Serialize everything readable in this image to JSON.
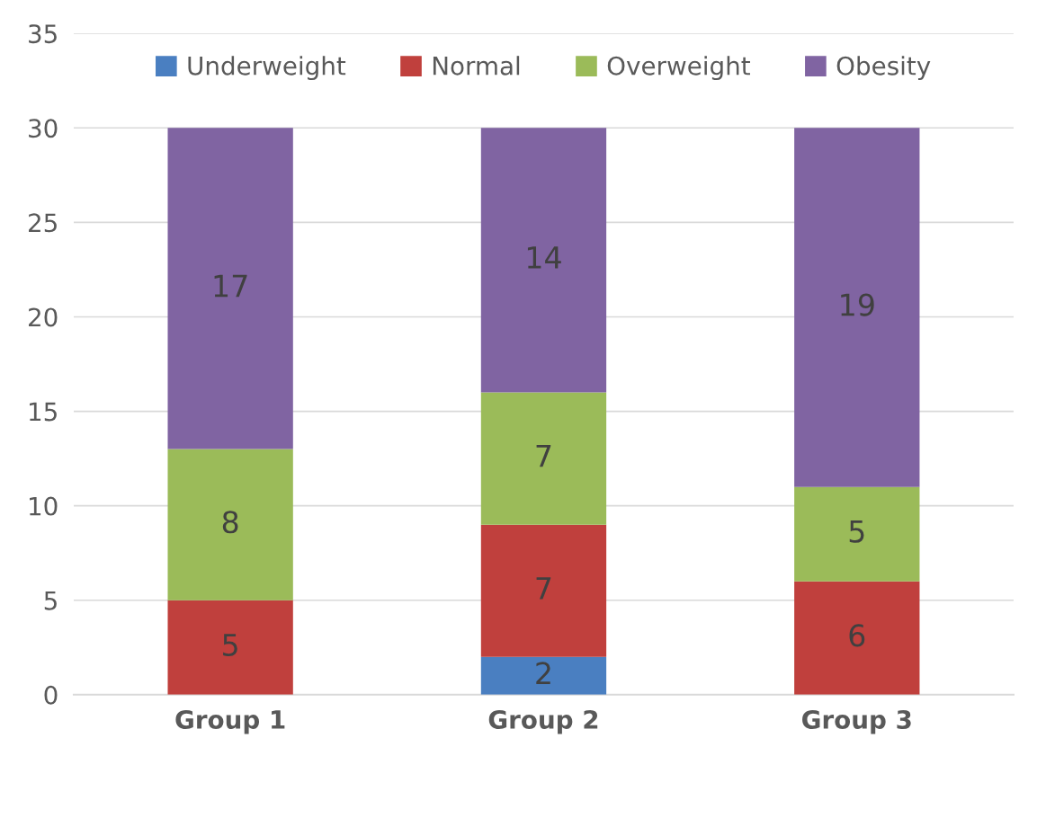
{
  "chart_data": {
    "type": "bar",
    "stacked": true,
    "categories": [
      "Group 1",
      "Group 2",
      "Group 3"
    ],
    "series": [
      {
        "name": "Underweight",
        "color": "#4a7fc1",
        "values": [
          0,
          2,
          0
        ],
        "value_labels": [
          null,
          "2",
          null
        ]
      },
      {
        "name": "Normal",
        "color": "#c0403d",
        "values": [
          5,
          7,
          6
        ],
        "value_labels": [
          "5",
          "7",
          "6"
        ]
      },
      {
        "name": "Overweight",
        "color": "#9bbb59",
        "values": [
          8,
          7,
          5
        ],
        "value_labels": [
          "8",
          "7",
          "5"
        ]
      },
      {
        "name": "Obesity",
        "color": "#8064a2",
        "values": [
          17,
          14,
          19
        ],
        "value_labels": [
          "17",
          "14",
          "19"
        ]
      }
    ],
    "ylim": [
      0,
      35
    ],
    "yticks": [
      0,
      5,
      10,
      15,
      20,
      25,
      30,
      35
    ],
    "grid": "y",
    "legend": "top"
  }
}
